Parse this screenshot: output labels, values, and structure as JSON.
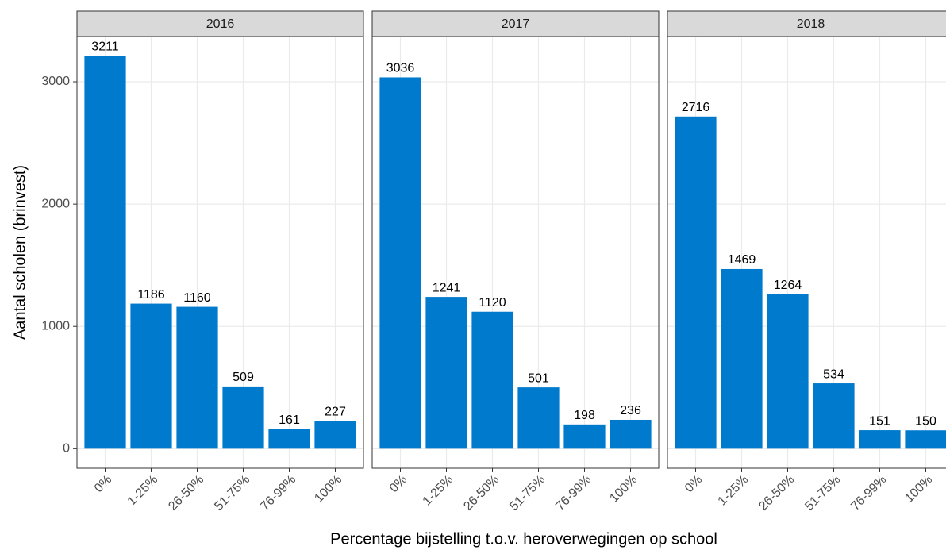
{
  "x_label": "Percentage bijstelling t.o.v. heroverwegingen op school",
  "y_label": "Aantal scholen (brinvest)",
  "chart_data": [
    {
      "type": "bar",
      "title": "2016",
      "categories": [
        "0%",
        "1-25%",
        "26-50%",
        "51-75%",
        "76-99%",
        "100%"
      ],
      "values": [
        3211,
        1186,
        1160,
        509,
        161,
        227
      ],
      "color": "#007acc",
      "ylim": [
        -160,
        3370
      ],
      "yticks": [
        0,
        1000,
        2000,
        3000
      ],
      "grid": true
    },
    {
      "type": "bar",
      "title": "2017",
      "categories": [
        "0%",
        "1-25%",
        "26-50%",
        "51-75%",
        "76-99%",
        "100%"
      ],
      "values": [
        3036,
        1241,
        1120,
        501,
        198,
        236
      ],
      "color": "#007acc",
      "ylim": [
        -160,
        3370
      ],
      "yticks": [
        0,
        1000,
        2000,
        3000
      ],
      "grid": true
    },
    {
      "type": "bar",
      "title": "2018",
      "categories": [
        "0%",
        "1-25%",
        "26-50%",
        "51-75%",
        "76-99%",
        "100%"
      ],
      "values": [
        2716,
        1469,
        1264,
        534,
        151,
        150
      ],
      "color": "#007acc",
      "ylim": [
        -160,
        3370
      ],
      "yticks": [
        0,
        1000,
        2000,
        3000
      ],
      "grid": true
    }
  ]
}
